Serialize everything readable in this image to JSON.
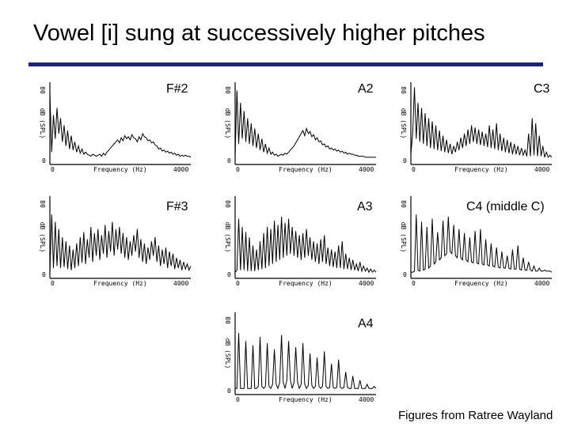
{
  "slide": {
    "title": "Vowel [i] sung at successively higher pitches",
    "credit": "Figures from Ratree Wayland"
  },
  "chart_data": [
    {
      "type": "line",
      "note": "F#2",
      "xlabel": "Frequency (Hz)",
      "ylabel": "dB (SPL)",
      "xlim": [
        0,
        4000
      ],
      "ylim": [
        0,
        80
      ],
      "x_ticks": [
        "0",
        "4000"
      ],
      "y_ticks": [
        "0",
        "80"
      ],
      "values": [
        70,
        12,
        48,
        25,
        55,
        30,
        45,
        22,
        38,
        18,
        33,
        15,
        28,
        14,
        22,
        12,
        18,
        11,
        15,
        10,
        12,
        10,
        9,
        8,
        10,
        9,
        8,
        9,
        10,
        8,
        11,
        9,
        12,
        14,
        16,
        18,
        20,
        22,
        24,
        21,
        26,
        23,
        28,
        25,
        27,
        24,
        29,
        26,
        25,
        22,
        27,
        24,
        30,
        27,
        26,
        23,
        24,
        21,
        22,
        19,
        18,
        15,
        16,
        13,
        14,
        12,
        13,
        11,
        12,
        10,
        11,
        9,
        10,
        8,
        9,
        8,
        9,
        8,
        8,
        7
      ]
    },
    {
      "type": "line",
      "note": "A2",
      "xlabel": "Frequency (Hz)",
      "ylabel": "dB (SPL)",
      "xlim": [
        0,
        4000
      ],
      "ylim": [
        0,
        80
      ],
      "x_ticks": [
        "0",
        "4000"
      ],
      "y_ticks": [
        "0",
        "80"
      ],
      "values": [
        8,
        72,
        20,
        60,
        25,
        52,
        22,
        45,
        20,
        40,
        18,
        35,
        16,
        30,
        14,
        25,
        12,
        20,
        11,
        16,
        10,
        12,
        9,
        10,
        8,
        9,
        10,
        9,
        11,
        10,
        12,
        14,
        16,
        18,
        21,
        24,
        27,
        30,
        33,
        28,
        35,
        30,
        32,
        27,
        29,
        24,
        26,
        22,
        23,
        19,
        20,
        17,
        18,
        15,
        16,
        14,
        15,
        13,
        14,
        12,
        13,
        11,
        12,
        10,
        11,
        10,
        10,
        9,
        9,
        8,
        8,
        8,
        8,
        7,
        7,
        7,
        7,
        7,
        7,
        7
      ]
    },
    {
      "type": "line",
      "note": "C3",
      "xlabel": "Frequency (Hz)",
      "ylabel": "dB (SPL)",
      "xlim": [
        0,
        4000
      ],
      "ylim": [
        0,
        80
      ],
      "x_ticks": [
        "0",
        "4000"
      ],
      "y_ticks": [
        "0",
        "80"
      ],
      "values": [
        10,
        30,
        75,
        25,
        60,
        22,
        55,
        20,
        50,
        18,
        45,
        16,
        42,
        15,
        38,
        14,
        33,
        13,
        28,
        12,
        24,
        11,
        20,
        10,
        18,
        12,
        22,
        14,
        26,
        16,
        30,
        18,
        34,
        20,
        38,
        22,
        36,
        20,
        34,
        19,
        32,
        18,
        30,
        17,
        38,
        16,
        34,
        15,
        40,
        14,
        30,
        13,
        26,
        12,
        24,
        11,
        22,
        10,
        20,
        10,
        18,
        9,
        16,
        9,
        14,
        8,
        30,
        8,
        45,
        9,
        40,
        8,
        28,
        8,
        18,
        7,
        12,
        7,
        9,
        7
      ]
    },
    {
      "type": "line",
      "note": "F#3",
      "xlabel": "Frequency (Hz)",
      "ylabel": "dB (SPL)",
      "xlim": [
        0,
        4000
      ],
      "ylim": [
        0,
        80
      ],
      "x_ticks": [
        "0",
        "4000"
      ],
      "y_ticks": [
        "0",
        "80"
      ],
      "values": [
        5,
        62,
        10,
        55,
        12,
        48,
        10,
        40,
        11,
        36,
        9,
        32,
        8,
        28,
        10,
        34,
        12,
        40,
        15,
        45,
        14,
        38,
        20,
        50,
        16,
        44,
        22,
        48,
        18,
        42,
        24,
        52,
        20,
        46,
        26,
        55,
        22,
        48,
        28,
        50,
        24,
        44,
        20,
        40,
        18,
        36,
        22,
        42,
        26,
        48,
        20,
        38,
        16,
        34,
        14,
        30,
        18,
        36,
        22,
        40,
        16,
        32,
        12,
        28,
        14,
        30,
        10,
        26,
        12,
        24,
        9,
        20,
        10,
        18,
        8,
        16,
        9,
        14,
        8,
        12
      ]
    },
    {
      "type": "line",
      "note": "A3",
      "xlabel": "Frequency (Hz)",
      "ylabel": "dB (SPL)",
      "xlim": [
        0,
        4000
      ],
      "ylim": [
        0,
        80
      ],
      "x_ticks": [
        "0",
        "4000"
      ],
      "y_ticks": [
        "0",
        "80"
      ],
      "values": [
        6,
        8,
        58,
        8,
        50,
        8,
        45,
        7,
        40,
        7,
        32,
        7,
        28,
        8,
        36,
        9,
        44,
        10,
        50,
        12,
        48,
        14,
        56,
        16,
        52,
        18,
        60,
        20,
        54,
        22,
        58,
        24,
        50,
        22,
        46,
        20,
        42,
        18,
        44,
        20,
        48,
        22,
        40,
        18,
        36,
        16,
        34,
        14,
        38,
        16,
        42,
        14,
        30,
        12,
        28,
        11,
        26,
        10,
        32,
        10,
        36,
        9,
        24,
        9,
        20,
        8,
        18,
        8,
        14,
        7,
        16,
        7,
        12,
        7,
        10,
        6,
        9,
        6,
        8,
        6
      ]
    },
    {
      "type": "line",
      "note": "C4 (middle C)",
      "xlabel": "Frequency (Hz)",
      "ylabel": "dB (SPL)",
      "xlim": [
        0,
        4000
      ],
      "ylim": [
        0,
        80
      ],
      "x_ticks": [
        "0",
        "4000"
      ],
      "y_ticks": [
        "0",
        "80"
      ],
      "values": [
        6,
        6,
        7,
        62,
        8,
        7,
        55,
        8,
        9,
        50,
        10,
        12,
        58,
        14,
        16,
        45,
        18,
        20,
        56,
        22,
        24,
        60,
        26,
        24,
        52,
        22,
        20,
        48,
        20,
        18,
        44,
        18,
        16,
        40,
        16,
        15,
        46,
        15,
        14,
        48,
        14,
        13,
        38,
        13,
        12,
        34,
        12,
        11,
        30,
        11,
        10,
        26,
        10,
        10,
        22,
        10,
        9,
        28,
        9,
        9,
        32,
        9,
        8,
        20,
        8,
        8,
        16,
        8,
        7,
        12,
        7,
        7,
        10,
        7,
        7,
        8,
        7,
        7,
        7,
        6
      ]
    },
    {
      "type": "line",
      "note": "A4",
      "xlabel": "Frequency (Hz)",
      "ylabel": "dB (SPL)",
      "xlim": [
        0,
        4000
      ],
      "ylim": [
        0,
        80
      ],
      "x_ticks": [
        "0",
        "4000"
      ],
      "y_ticks": [
        "0",
        "80"
      ],
      "values": [
        6,
        6,
        60,
        6,
        6,
        6,
        52,
        6,
        6,
        6,
        48,
        6,
        6,
        8,
        56,
        8,
        6,
        8,
        50,
        8,
        6,
        10,
        44,
        10,
        6,
        12,
        58,
        12,
        6,
        14,
        52,
        14,
        6,
        12,
        46,
        12,
        6,
        10,
        50,
        10,
        6,
        9,
        40,
        9,
        6,
        8,
        36,
        8,
        6,
        8,
        42,
        8,
        6,
        7,
        30,
        7,
        6,
        7,
        34,
        7,
        6,
        7,
        22,
        7,
        6,
        6,
        18,
        6,
        6,
        6,
        14,
        6,
        6,
        6,
        10,
        6,
        6,
        6,
        8,
        6
      ]
    }
  ]
}
